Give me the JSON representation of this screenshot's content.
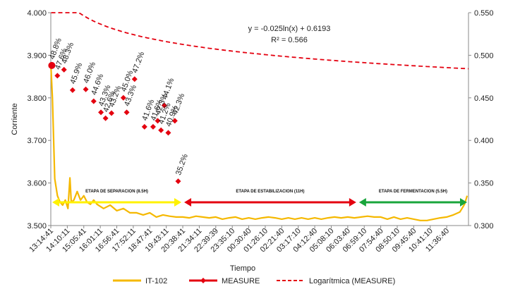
{
  "chart_data": {
    "type": "line",
    "xlabel": "Tiempo",
    "ylabel": "Corriente",
    "y_left": {
      "min": 3.5,
      "max": 4.0,
      "ticks": [
        "3.500",
        "3.600",
        "3.700",
        "3.800",
        "3.900",
        "4.000"
      ]
    },
    "y_right": {
      "min": 0.3,
      "max": 0.55,
      "ticks": [
        "0.300",
        "0.350",
        "0.400",
        "0.450",
        "0.500",
        "0.550"
      ]
    },
    "x_ticks": [
      "13:14:41",
      "14:10:11",
      "15:05:41",
      "16:01:11",
      "16:56:41",
      "17:52:11",
      "18:47:41",
      "19:43:11",
      "20:38:41",
      "21:34:11",
      "22:39:39",
      "23:35:10",
      "00:30:40",
      "01:26:10",
      "02:21:40",
      "03:17:10",
      "04:12:40",
      "05:08:10",
      "06:03:40",
      "06:59:10",
      "07:54:40",
      "08:50:10",
      "09:45:40",
      "10:41:10",
      "11:36:40"
    ],
    "grid": false,
    "legend_position": "bottom",
    "equation": "y = -0.025ln(x) + 0.6193",
    "r2": "R² = 0.566",
    "series": [
      {
        "name": "IT-102",
        "axis": "left",
        "color": "#F5B800",
        "values": [
          [
            0.0,
            3.88
          ],
          [
            0.25,
            3.8
          ],
          [
            0.6,
            3.61
          ],
          [
            1.0,
            3.57
          ],
          [
            1.4,
            3.555
          ],
          [
            1.8,
            3.548
          ],
          [
            2.2,
            3.56
          ],
          [
            2.6,
            3.54
          ],
          [
            2.9,
            3.612
          ],
          [
            3.1,
            3.555
          ],
          [
            3.5,
            3.56
          ],
          [
            4.0,
            3.58
          ],
          [
            4.5,
            3.56
          ],
          [
            5.0,
            3.57
          ],
          [
            5.5,
            3.555
          ],
          [
            6.0,
            3.55
          ],
          [
            6.5,
            3.56
          ],
          [
            7.0,
            3.55
          ],
          [
            7.5,
            3.545
          ],
          [
            8.0,
            3.54
          ],
          [
            9.0,
            3.548
          ],
          [
            10.0,
            3.535
          ],
          [
            11.0,
            3.54
          ],
          [
            12.0,
            3.53
          ],
          [
            13.0,
            3.53
          ],
          [
            14.0,
            3.525
          ],
          [
            15.0,
            3.53
          ],
          [
            16.0,
            3.52
          ],
          [
            17.0,
            3.525
          ],
          [
            18.0,
            3.522
          ],
          [
            19.0,
            3.52
          ],
          [
            20.0,
            3.52
          ],
          [
            21.0,
            3.518
          ],
          [
            22.0,
            3.522
          ],
          [
            23.0,
            3.52
          ],
          [
            24.0,
            3.518
          ],
          [
            25.0,
            3.52
          ],
          [
            26.0,
            3.515
          ],
          [
            27.0,
            3.518
          ],
          [
            28.0,
            3.52
          ],
          [
            29.0,
            3.515
          ],
          [
            30.0,
            3.518
          ],
          [
            31.0,
            3.515
          ],
          [
            32.0,
            3.518
          ],
          [
            33.0,
            3.52
          ],
          [
            34.0,
            3.518
          ],
          [
            35.0,
            3.515
          ],
          [
            36.0,
            3.518
          ],
          [
            37.0,
            3.515
          ],
          [
            38.0,
            3.518
          ],
          [
            39.0,
            3.515
          ],
          [
            40.0,
            3.518
          ],
          [
            41.0,
            3.515
          ],
          [
            42.0,
            3.518
          ],
          [
            43.0,
            3.52
          ],
          [
            44.0,
            3.518
          ],
          [
            45.0,
            3.52
          ],
          [
            46.0,
            3.518
          ],
          [
            47.0,
            3.52
          ],
          [
            48.0,
            3.522
          ],
          [
            49.0,
            3.52
          ],
          [
            50.0,
            3.52
          ],
          [
            51.0,
            3.515
          ],
          [
            52.0,
            3.52
          ],
          [
            53.0,
            3.515
          ],
          [
            54.0,
            3.518
          ],
          [
            55.0,
            3.515
          ],
          [
            56.0,
            3.512
          ],
          [
            57.0,
            3.512
          ],
          [
            58.0,
            3.515
          ],
          [
            59.0,
            3.518
          ],
          [
            60.0,
            3.52
          ],
          [
            61.0,
            3.525
          ],
          [
            62.0,
            3.532
          ],
          [
            62.7,
            3.55
          ],
          [
            63.1,
            3.57
          ]
        ]
      },
      {
        "name": "MEASURE",
        "axis": "right",
        "color": "#E4000F",
        "points": [
          [
            0.15,
            0.488,
            "48.8%"
          ],
          [
            1.0,
            0.476,
            "47.6%"
          ],
          [
            2.0,
            0.483,
            "48.3%"
          ],
          [
            3.3,
            0.459,
            "45.9%"
          ],
          [
            5.3,
            0.46,
            "46.0%"
          ],
          [
            6.5,
            0.446,
            "44.6%"
          ],
          [
            7.6,
            0.433,
            "43.3%"
          ],
          [
            8.3,
            0.426,
            "42.6%"
          ],
          [
            9.2,
            0.432,
            "43.2%"
          ],
          [
            11.0,
            0.45,
            "45.0%"
          ],
          [
            11.5,
            0.433,
            "43.3%"
          ],
          [
            12.7,
            0.472,
            "47.2%"
          ],
          [
            14.2,
            0.416,
            "41.6%"
          ],
          [
            15.5,
            0.416,
            "41.6%"
          ],
          [
            16.2,
            0.423,
            "42.3%"
          ],
          [
            16.7,
            0.412,
            "41.2%"
          ],
          [
            17.2,
            0.441,
            "44.1%"
          ],
          [
            17.8,
            0.409,
            "40.9%"
          ],
          [
            18.8,
            0.423,
            "42.3%"
          ],
          [
            19.3,
            0.352,
            "35.2%"
          ]
        ]
      },
      {
        "name": "Logarítmica (MEASURE)",
        "axis": "right",
        "color": "#E4000F",
        "dashed": true
      }
    ],
    "annotations": [
      {
        "text": "ETAPA DE SEPARACION (8.5H)",
        "from": 0,
        "to": 20,
        "arrow_color": "#FFF200"
      },
      {
        "text": "ETAPA DE ESTABILIZACION (11H)",
        "from": 20,
        "to": 46.5,
        "arrow_color": "#E4000F"
      },
      {
        "text": "ETAPA DE FERMENTACION (5.5H)",
        "from": 46.5,
        "to": 63.3,
        "arrow_color": "#19A53B"
      }
    ]
  }
}
